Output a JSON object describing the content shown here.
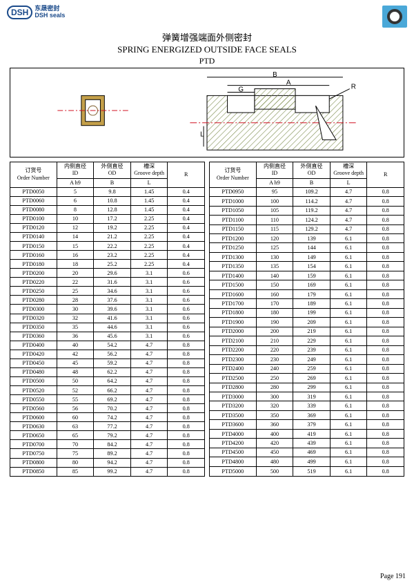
{
  "logo": {
    "badge": "DSH",
    "cn": "东晟密封",
    "en": "DSH seals"
  },
  "title_cn": "弹簧增强端面外侧密封",
  "title_en": "SPRING ENERGIZED OUTSIDE FACE SEALS",
  "title_code": "PTD",
  "headers": {
    "order_cn": "订货号",
    "order_en": "Order Number",
    "id_cn": "内侧直径",
    "id_en": "ID",
    "od_cn": "外侧直径",
    "od_en": "OD",
    "gd_cn": "槽深",
    "gd_en": "Groove depth",
    "r": "R",
    "sub_a": "A  h9",
    "sub_b": "B",
    "sub_l": "L"
  },
  "diagram_labels": {
    "B": "B",
    "A": "A",
    "G": "G",
    "L": "L",
    "R": "R"
  },
  "page": "Page  191",
  "left_rows": [
    [
      "PTD0050",
      "5",
      "9.8",
      "1.45",
      "0.4"
    ],
    [
      "PTD0060",
      "6",
      "10.8",
      "1.45",
      "0.4"
    ],
    [
      "PTD0080",
      "8",
      "12.8",
      "1.45",
      "0.4"
    ],
    [
      "PTD0100",
      "10",
      "17.2",
      "2.25",
      "0.4"
    ],
    [
      "PTD0120",
      "12",
      "19.2",
      "2.25",
      "0.4"
    ],
    [
      "PTD0140",
      "14",
      "21.2",
      "2.25",
      "0.4"
    ],
    [
      "PTD0150",
      "15",
      "22.2",
      "2.25",
      "0.4"
    ],
    [
      "PTD0160",
      "16",
      "23.2",
      "2.25",
      "0.4"
    ],
    [
      "PTD0180",
      "18",
      "25.2",
      "2.25",
      "0.4"
    ],
    [
      "PTD0200",
      "20",
      "29.6",
      "3.1",
      "0.6"
    ],
    [
      "PTD0220",
      "22",
      "31.6",
      "3.1",
      "0.6"
    ],
    [
      "PTD0250",
      "25",
      "34.6",
      "3.1",
      "0.6"
    ],
    [
      "PTD0280",
      "28",
      "37.6",
      "3.1",
      "0.6"
    ],
    [
      "PTD0300",
      "30",
      "39.6",
      "3.1",
      "0.6"
    ],
    [
      "PTD0320",
      "32",
      "41.6",
      "3.1",
      "0.6"
    ],
    [
      "PTD0350",
      "35",
      "44.6",
      "3.1",
      "0.6"
    ],
    [
      "PTD0360",
      "36",
      "45.6",
      "3.1",
      "0.6"
    ],
    [
      "PTD0400",
      "40",
      "54.2",
      "4.7",
      "0.8"
    ],
    [
      "PTD0420",
      "42",
      "56.2",
      "4.7",
      "0.8"
    ],
    [
      "PTD0450",
      "45",
      "59.2",
      "4.7",
      "0.8"
    ],
    [
      "PTD0480",
      "48",
      "62.2",
      "4.7",
      "0.8"
    ],
    [
      "PTD0500",
      "50",
      "64.2",
      "4.7",
      "0.8"
    ],
    [
      "PTD0520",
      "52",
      "66.2",
      "4.7",
      "0.8"
    ],
    [
      "PTD0550",
      "55",
      "69.2",
      "4.7",
      "0.8"
    ],
    [
      "PTD0560",
      "56",
      "70.2",
      "4.7",
      "0.8"
    ],
    [
      "PTD0600",
      "60",
      "74.2",
      "4.7",
      "0.8"
    ],
    [
      "PTD0630",
      "63",
      "77.2",
      "4.7",
      "0.8"
    ],
    [
      "PTD0650",
      "65",
      "79.2",
      "4.7",
      "0.8"
    ],
    [
      "PTD0700",
      "70",
      "84.2",
      "4.7",
      "0.8"
    ],
    [
      "PTD0750",
      "75",
      "89.2",
      "4.7",
      "0.8"
    ],
    [
      "PTD0800",
      "80",
      "94.2",
      "4.7",
      "0.8"
    ],
    [
      "PTD0850",
      "85",
      "99.2",
      "4.7",
      "0.8"
    ]
  ],
  "right_rows": [
    [
      "PTD0950",
      "95",
      "109.2",
      "4.7",
      "0.8"
    ],
    [
      "PTD1000",
      "100",
      "114.2",
      "4.7",
      "0.8"
    ],
    [
      "PTD1050",
      "105",
      "119.2",
      "4.7",
      "0.8"
    ],
    [
      "PTD1100",
      "110",
      "124.2",
      "4.7",
      "0.8"
    ],
    [
      "PTD1150",
      "115",
      "129.2",
      "4.7",
      "0.8"
    ],
    [
      "PTD1200",
      "120",
      "139",
      "6.1",
      "0.8"
    ],
    [
      "PTD1250",
      "125",
      "144",
      "6.1",
      "0.8"
    ],
    [
      "PTD1300",
      "130",
      "149",
      "6.1",
      "0.8"
    ],
    [
      "PTD1350",
      "135",
      "154",
      "6.1",
      "0.8"
    ],
    [
      "PTD1400",
      "140",
      "159",
      "6.1",
      "0.8"
    ],
    [
      "PTD1500",
      "150",
      "169",
      "6.1",
      "0.8"
    ],
    [
      "PTD1600",
      "160",
      "179",
      "6.1",
      "0.8"
    ],
    [
      "PTD1700",
      "170",
      "189",
      "6.1",
      "0.8"
    ],
    [
      "PTD1800",
      "180",
      "199",
      "6.1",
      "0.8"
    ],
    [
      "PTD1900",
      "190",
      "209",
      "6.1",
      "0.8"
    ],
    [
      "PTD2000",
      "200",
      "219",
      "6.1",
      "0.8"
    ],
    [
      "PTD2100",
      "210",
      "229",
      "6.1",
      "0.8"
    ],
    [
      "PTD2200",
      "220",
      "239",
      "6.1",
      "0.8"
    ],
    [
      "PTD2300",
      "230",
      "249",
      "6.1",
      "0.8"
    ],
    [
      "PTD2400",
      "240",
      "259",
      "6.1",
      "0.8"
    ],
    [
      "PTD2500",
      "250",
      "269",
      "6.1",
      "0.8"
    ],
    [
      "PTD2800",
      "280",
      "299",
      "6.1",
      "0.8"
    ],
    [
      "PTD3000",
      "300",
      "319",
      "6.1",
      "0.8"
    ],
    [
      "PTD3200",
      "320",
      "339",
      "6.1",
      "0.8"
    ],
    [
      "PTD3500",
      "350",
      "369",
      "6.1",
      "0.8"
    ],
    [
      "PTD3600",
      "360",
      "379",
      "6.1",
      "0.8"
    ],
    [
      "PTD4000",
      "400",
      "419",
      "6.1",
      "0.8"
    ],
    [
      "PTD4200",
      "420",
      "439",
      "6.1",
      "0.8"
    ],
    [
      "PTD4500",
      "450",
      "469",
      "6.1",
      "0.8"
    ],
    [
      "PTD4800",
      "480",
      "499",
      "6.1",
      "0.8"
    ],
    [
      "PTD5000",
      "500",
      "519",
      "6.1",
      "0.8"
    ]
  ],
  "diagram_colors": {
    "hatch": "#7a8a4a",
    "seal_body": "#c4a04a",
    "centerline": "#d01020",
    "outline": "#000000"
  }
}
